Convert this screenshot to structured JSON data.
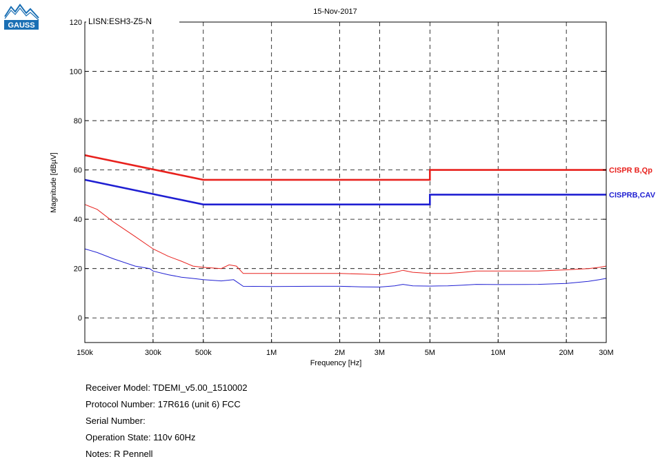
{
  "logo": {
    "text": "GAUSS"
  },
  "header": {
    "date": "15-Nov-2017",
    "probe_label": "LISN:ESH3-Z5-N"
  },
  "chart_data": {
    "type": "line",
    "xlabel": "Frequency [Hz]",
    "ylabel": "Magnitude [dBµV]",
    "xscale": "log",
    "xlim": [
      150000,
      30000000
    ],
    "ylim": [
      -10,
      120
    ],
    "grid": true,
    "x_ticks": [
      {
        "value": 150000,
        "label": "150k"
      },
      {
        "value": 300000,
        "label": "300k"
      },
      {
        "value": 500000,
        "label": "500k"
      },
      {
        "value": 1000000,
        "label": "1M"
      },
      {
        "value": 2000000,
        "label": "2M"
      },
      {
        "value": 3000000,
        "label": "3M"
      },
      {
        "value": 5000000,
        "label": "5M"
      },
      {
        "value": 10000000,
        "label": "10M"
      },
      {
        "value": 20000000,
        "label": "20M"
      },
      {
        "value": 30000000,
        "label": "30M"
      }
    ],
    "y_ticks": [
      {
        "value": 0,
        "label": "0"
      },
      {
        "value": 20,
        "label": "20"
      },
      {
        "value": 40,
        "label": "40"
      },
      {
        "value": 60,
        "label": "60"
      },
      {
        "value": 80,
        "label": "80"
      },
      {
        "value": 100,
        "label": "100"
      },
      {
        "value": 120,
        "label": "120"
      }
    ],
    "series": [
      {
        "name": "CISPR B,Qp",
        "color": "#e8211d",
        "style": "limit",
        "points": [
          [
            150000,
            66
          ],
          [
            500000,
            56
          ],
          [
            5000000,
            56
          ],
          [
            5000000,
            60
          ],
          [
            30000000,
            60
          ]
        ]
      },
      {
        "name": "CISPRB,CAV",
        "color": "#1f1fd2",
        "style": "limit",
        "points": [
          [
            150000,
            56
          ],
          [
            500000,
            46
          ],
          [
            5000000,
            46
          ],
          [
            5000000,
            50
          ],
          [
            30000000,
            50
          ]
        ]
      },
      {
        "color": "#e8211d",
        "style": "trace",
        "points": [
          [
            150000,
            46
          ],
          [
            170000,
            44
          ],
          [
            200000,
            39
          ],
          [
            250000,
            33
          ],
          [
            300000,
            28
          ],
          [
            350000,
            25
          ],
          [
            400000,
            23
          ],
          [
            450000,
            21
          ],
          [
            500000,
            20.5
          ],
          [
            600000,
            20
          ],
          [
            650000,
            21.5
          ],
          [
            700000,
            21
          ],
          [
            750000,
            18
          ],
          [
            1000000,
            18
          ],
          [
            1500000,
            18
          ],
          [
            2000000,
            18
          ],
          [
            2500000,
            17.8
          ],
          [
            3000000,
            17.5
          ],
          [
            3500000,
            18.5
          ],
          [
            3800000,
            19.3
          ],
          [
            4200000,
            18.5
          ],
          [
            5000000,
            18
          ],
          [
            6000000,
            18
          ],
          [
            7000000,
            18.5
          ],
          [
            8000000,
            19
          ],
          [
            10000000,
            19
          ],
          [
            15000000,
            19
          ],
          [
            20000000,
            19.5
          ],
          [
            25000000,
            20
          ],
          [
            28000000,
            20.5
          ],
          [
            30000000,
            21
          ]
        ]
      },
      {
        "color": "#1f1fd2",
        "style": "trace",
        "points": [
          [
            150000,
            28
          ],
          [
            170000,
            26.5
          ],
          [
            200000,
            24
          ],
          [
            250000,
            21
          ],
          [
            290000,
            20
          ],
          [
            300000,
            19
          ],
          [
            350000,
            17.5
          ],
          [
            400000,
            16.5
          ],
          [
            450000,
            16
          ],
          [
            500000,
            15.5
          ],
          [
            600000,
            15
          ],
          [
            680000,
            15.5
          ],
          [
            750000,
            12.8
          ],
          [
            1000000,
            12.7
          ],
          [
            1500000,
            12.8
          ],
          [
            2000000,
            12.8
          ],
          [
            2500000,
            12.6
          ],
          [
            3000000,
            12.5
          ],
          [
            3500000,
            13
          ],
          [
            3800000,
            13.6
          ],
          [
            4200000,
            13
          ],
          [
            5000000,
            12.9
          ],
          [
            6000000,
            13
          ],
          [
            7000000,
            13.3
          ],
          [
            8000000,
            13.6
          ],
          [
            10000000,
            13.5
          ],
          [
            15000000,
            13.6
          ],
          [
            20000000,
            14
          ],
          [
            25000000,
            14.8
          ],
          [
            28000000,
            15.5
          ],
          [
            30000000,
            16
          ]
        ]
      }
    ]
  },
  "info": {
    "receiver_model": "Receiver Model: TDEMI_v5.00_1510002",
    "protocol_number": "Protocol Number: 17R616 (unit 6) FCC",
    "serial_number": "Serial Number:",
    "operation_state": "Operation State: 110v 60Hz",
    "notes": "Notes: R Pennell"
  }
}
